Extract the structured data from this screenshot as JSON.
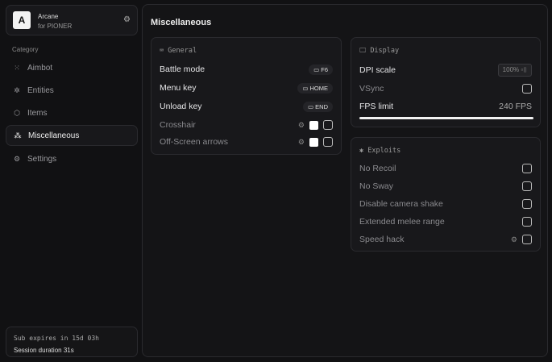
{
  "brand": {
    "logo": "A",
    "name": "Arcane",
    "sub": "for PIONER"
  },
  "sidebar": {
    "category": "Category",
    "items": [
      {
        "label": "Aimbot",
        "icon": "crosshair-icon"
      },
      {
        "label": "Entities",
        "icon": "entities-icon"
      },
      {
        "label": "Items",
        "icon": "box-icon"
      },
      {
        "label": "Miscellaneous",
        "icon": "misc-icon",
        "active": true
      },
      {
        "label": "Settings",
        "icon": "gear-icon"
      }
    ]
  },
  "footer": {
    "sub": "Sub expires in 15d 03h",
    "session": "Session duration 31s"
  },
  "main": {
    "title": "Miscellaneous"
  },
  "general": {
    "title": "General",
    "rows": [
      {
        "label": "Battle mode",
        "key": "F6"
      },
      {
        "label": "Menu key",
        "key": "HOME"
      },
      {
        "label": "Unload key",
        "key": "END"
      }
    ],
    "crosshair": "Crosshair",
    "arrows": "Off-Screen arrows"
  },
  "display": {
    "title": "Display",
    "dpi_label": "DPI scale",
    "dpi_value": "100%",
    "vsync": "VSync",
    "fps_label": "FPS limit",
    "fps_value": "240 FPS",
    "fps_fill_percent": 100
  },
  "exploits": {
    "title": "Exploits",
    "items": [
      "No Recoil",
      "No Sway",
      "Disable camera shake",
      "Extended melee range",
      "Speed hack"
    ]
  }
}
